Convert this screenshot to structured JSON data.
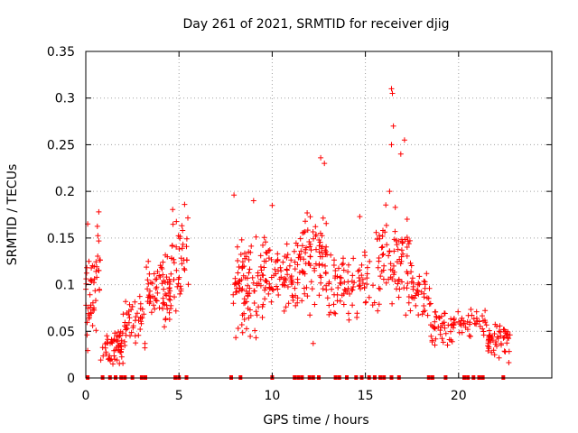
{
  "chart_data": {
    "type": "scatter",
    "title": "Day 261 of 2021, SRMTID for receiver djig",
    "xlabel": "GPS time / hours",
    "ylabel": "SRMTID / TECUs",
    "xlim": [
      0,
      25
    ],
    "ylim": [
      0,
      0.35
    ],
    "x_ticks": [
      0,
      5,
      10,
      15,
      20
    ],
    "x_tick_labels": [
      "0",
      "5",
      "10",
      "15",
      "20"
    ],
    "y_ticks": [
      0,
      0.05,
      0.1,
      0.15,
      0.2,
      0.25,
      0.3,
      0.35
    ],
    "y_tick_labels": [
      "0",
      "0.05",
      "0.1",
      "0.15",
      "0.2",
      "0.25",
      "0.3",
      "0.35"
    ],
    "grid": true,
    "marker": "+",
    "color": "#ff0000",
    "clusters": [
      {
        "x_start": 0.0,
        "x_end": 0.6,
        "y_center": 0.09,
        "y_spread": 0.05,
        "count": 40
      },
      {
        "x_start": 0.5,
        "x_end": 0.8,
        "y_center": 0.13,
        "y_spread": 0.05,
        "count": 10
      },
      {
        "x_start": 0.8,
        "x_end": 2.0,
        "y_center": 0.03,
        "y_spread": 0.02,
        "count": 55
      },
      {
        "x_start": 2.0,
        "x_end": 3.2,
        "y_center": 0.06,
        "y_spread": 0.025,
        "count": 45
      },
      {
        "x_start": 3.2,
        "x_end": 4.6,
        "y_center": 0.095,
        "y_spread": 0.04,
        "count": 75
      },
      {
        "x_start": 4.6,
        "x_end": 5.5,
        "y_center": 0.13,
        "y_spread": 0.05,
        "count": 40
      },
      {
        "x_start": 7.9,
        "x_end": 9.5,
        "y_center": 0.1,
        "y_spread": 0.05,
        "count": 90
      },
      {
        "x_start": 9.5,
        "x_end": 11.5,
        "y_center": 0.11,
        "y_spread": 0.035,
        "count": 90
      },
      {
        "x_start": 11.5,
        "x_end": 13.0,
        "y_center": 0.13,
        "y_spread": 0.05,
        "count": 80
      },
      {
        "x_start": 13.0,
        "x_end": 15.5,
        "y_center": 0.1,
        "y_spread": 0.035,
        "count": 80
      },
      {
        "x_start": 15.5,
        "x_end": 17.5,
        "y_center": 0.12,
        "y_spread": 0.06,
        "count": 90
      },
      {
        "x_start": 17.5,
        "x_end": 18.5,
        "y_center": 0.09,
        "y_spread": 0.025,
        "count": 35
      },
      {
        "x_start": 18.5,
        "x_end": 20.5,
        "y_center": 0.055,
        "y_spread": 0.02,
        "count": 60
      },
      {
        "x_start": 20.5,
        "x_end": 21.5,
        "y_center": 0.06,
        "y_spread": 0.02,
        "count": 25
      },
      {
        "x_start": 21.5,
        "x_end": 22.8,
        "y_center": 0.04,
        "y_spread": 0.02,
        "count": 55
      }
    ],
    "extra_points": [
      [
        0.1,
        0.165
      ],
      [
        0.7,
        0.178
      ],
      [
        5.3,
        0.186
      ],
      [
        7.95,
        0.196
      ],
      [
        9.0,
        0.19
      ],
      [
        10.0,
        0.185
      ],
      [
        12.6,
        0.236
      ],
      [
        12.8,
        0.23
      ],
      [
        14.7,
        0.173
      ],
      [
        16.4,
        0.31
      ],
      [
        16.45,
        0.305
      ],
      [
        16.5,
        0.27
      ],
      [
        16.4,
        0.25
      ],
      [
        17.1,
        0.255
      ],
      [
        16.9,
        0.24
      ],
      [
        16.3,
        0.2
      ],
      [
        12.2,
        0.037
      ]
    ],
    "zero_line_x": [
      0.1,
      0.9,
      1.3,
      1.6,
      1.9,
      2.1,
      2.5,
      3.0,
      3.2,
      4.8,
      5.0,
      5.4,
      7.8,
      8.3,
      10.0,
      11.2,
      11.4,
      11.6,
      12.0,
      12.2,
      12.5,
      13.4,
      13.6,
      14.0,
      14.5,
      14.8,
      15.2,
      15.5,
      15.8,
      16.0,
      16.4,
      16.8,
      18.4,
      18.6,
      19.3,
      20.3,
      20.5,
      20.8,
      21.1,
      21.3,
      22.4
    ]
  }
}
